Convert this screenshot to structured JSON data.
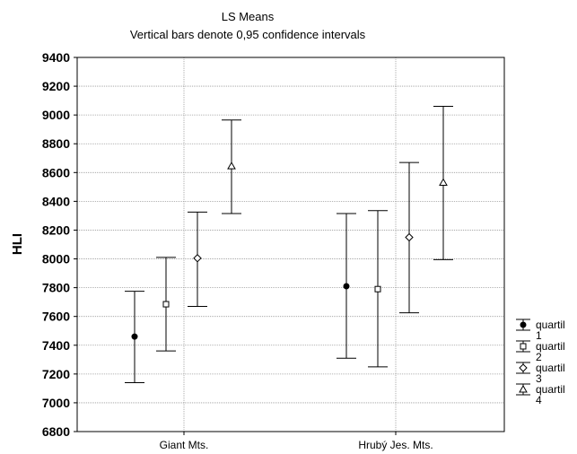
{
  "chart_data": {
    "type": "scatter",
    "title": "LS Means",
    "subtitle": "Vertical bars denote 0,95 confidence intervals",
    "xlabel": "",
    "ylabel": "HLI",
    "ylim": [
      6800,
      9400
    ],
    "yticks": [
      6800,
      7000,
      7200,
      7400,
      7600,
      7800,
      8000,
      8200,
      8400,
      8600,
      8800,
      9000,
      9200,
      9400
    ],
    "grid": true,
    "legend_position": "right",
    "categories": [
      "Giant Mts.",
      "Hrubý Jes. Mts."
    ],
    "series": [
      {
        "name": "quartil 1",
        "marker": "filled-circle",
        "means": [
          7460,
          7810
        ],
        "lower": [
          7140,
          7310
        ],
        "upper": [
          7775,
          8315
        ]
      },
      {
        "name": "quartil 2",
        "marker": "square",
        "means": [
          7685,
          7790
        ],
        "lower": [
          7360,
          7250
        ],
        "upper": [
          8010,
          8335
        ]
      },
      {
        "name": "quartil 3",
        "marker": "diamond",
        "means": [
          8005,
          8150
        ],
        "lower": [
          7670,
          7625
        ],
        "upper": [
          8325,
          8670
        ]
      },
      {
        "name": "quartil 4",
        "marker": "triangle",
        "means": [
          8645,
          8530
        ],
        "lower": [
          8315,
          7995
        ],
        "upper": [
          8965,
          9060
        ]
      }
    ]
  },
  "legend": {
    "items": [
      {
        "label_line1": "quartil",
        "label_line2": "1"
      },
      {
        "label_line1": "quartil",
        "label_line2": "2"
      },
      {
        "label_line1": "quartil",
        "label_line2": "3"
      },
      {
        "label_line1": "quartil",
        "label_line2": "4"
      }
    ]
  }
}
